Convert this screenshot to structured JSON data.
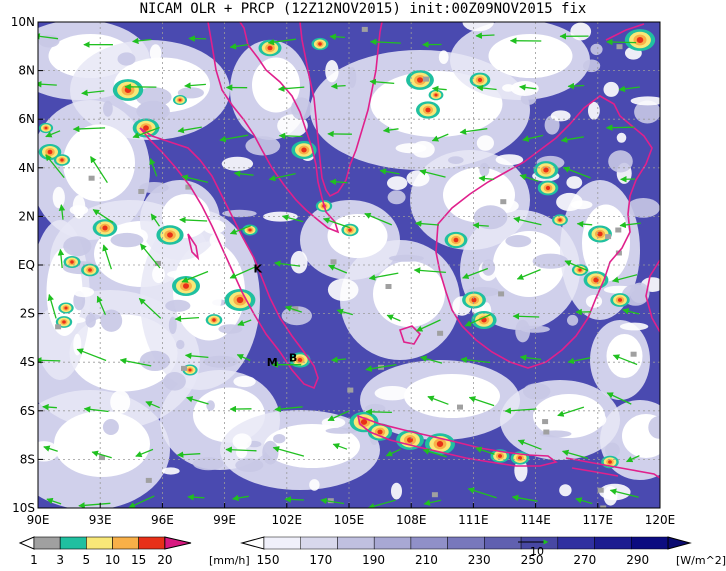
{
  "title": "NICAM OLR + PRCP (12Z12NOV2015) init:00Z09NOV2015 fix",
  "map": {
    "lon_min": 90,
    "lon_max": 120,
    "lat_min": -10,
    "lat_max": 10,
    "lat_ticks": [
      {
        "value": 10,
        "label": "10N"
      },
      {
        "value": 8,
        "label": "8N"
      },
      {
        "value": 6,
        "label": "6N"
      },
      {
        "value": 4,
        "label": "4N"
      },
      {
        "value": 2,
        "label": "2N"
      },
      {
        "value": 0,
        "label": "EQ"
      },
      {
        "value": -2,
        "label": "2S"
      },
      {
        "value": -4,
        "label": "4S"
      },
      {
        "value": -6,
        "label": "6S"
      },
      {
        "value": -8,
        "label": "8S"
      },
      {
        "value": -10,
        "label": "10S"
      }
    ],
    "lon_ticks": [
      {
        "value": 90,
        "label": "90E"
      },
      {
        "value": 93,
        "label": "93E"
      },
      {
        "value": 96,
        "label": "96E"
      },
      {
        "value": 99,
        "label": "99E"
      },
      {
        "value": 102,
        "label": "102E"
      },
      {
        "value": 105,
        "label": "105E"
      },
      {
        "value": 108,
        "label": "108E"
      },
      {
        "value": 111,
        "label": "111E"
      },
      {
        "value": 114,
        "label": "114E"
      },
      {
        "value": 117,
        "label": "117E"
      },
      {
        "value": 120,
        "label": "120E"
      }
    ],
    "stations": [
      {
        "label": "K",
        "lon": 100.6,
        "lat": -0.15
      },
      {
        "label": "M",
        "lon": 101.3,
        "lat": -4.0
      },
      {
        "label": "B",
        "lon": 102.3,
        "lat": -3.8
      }
    ]
  },
  "precip_colorbar": {
    "unit": "[mm/h]",
    "labels": [
      "1",
      "3",
      "5",
      "10",
      "15",
      "20"
    ],
    "colors": [
      "#a0a0a0",
      "#20c0a0",
      "#f8e878",
      "#f8b048",
      "#e83018",
      "#d81880"
    ]
  },
  "olr_colorbar": {
    "unit": "[W/m^2]",
    "labels": [
      "150",
      "170",
      "190",
      "210",
      "230",
      "250",
      "270",
      "290"
    ],
    "colors": [
      "#f0f0fa",
      "#d8d8ec",
      "#c0c0e0",
      "#a8a8d4",
      "#9090c8",
      "#7878bc",
      "#6060b0",
      "#4848a4",
      "#3030a0",
      "#1c1c90",
      "#0c0c80"
    ],
    "vector_ref_label": "10"
  },
  "colors": {
    "coastline": "#e0208c",
    "wind_vector": "#20c020",
    "ocean_base": "#4a4ab0"
  }
}
